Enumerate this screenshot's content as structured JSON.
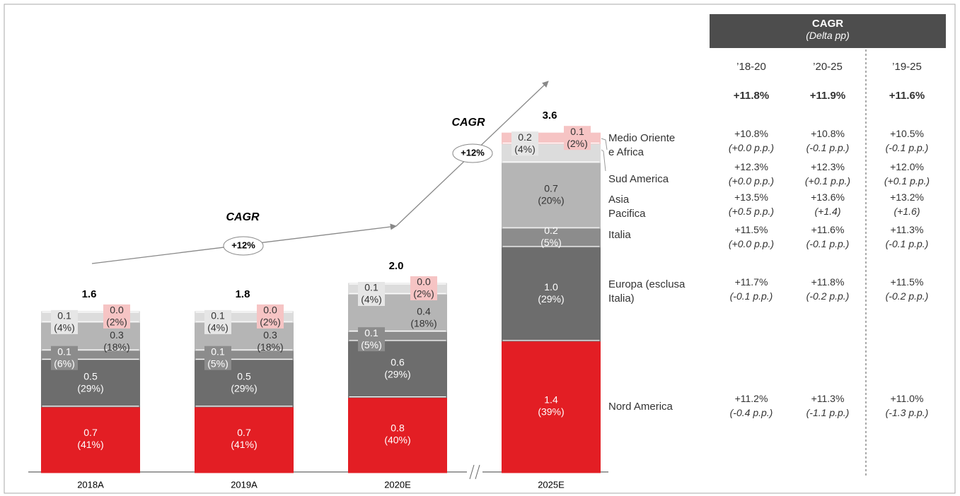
{
  "chart_data": {
    "type": "stacked_bar",
    "categories": [
      "2018A",
      "2019A",
      "2020E",
      "2025E"
    ],
    "series": [
      {
        "name": "Nord America",
        "color": "#e31e24",
        "values": [
          0.7,
          0.7,
          0.8,
          1.4
        ],
        "shares": [
          41,
          41,
          40,
          39
        ],
        "share_labels": [
          "(41%)",
          "(41%)",
          "(40%)",
          "(39%)"
        ],
        "value_labels": [
          "0.7",
          "0.7",
          "0.8",
          "1.4"
        ]
      },
      {
        "name": "Europa (esclusa Italia)",
        "color": "#6d6d6d",
        "values": [
          0.5,
          0.5,
          0.6,
          1.0
        ],
        "shares": [
          29,
          29,
          29,
          29
        ],
        "share_labels": [
          "(29%)",
          "(29%)",
          "(29%)",
          "(29%)"
        ],
        "value_labels": [
          "0.5",
          "0.5",
          "0.6",
          "1.0"
        ]
      },
      {
        "name": "Italia",
        "color": "#8c8c8c",
        "values": [
          0.1,
          0.1,
          0.1,
          0.2
        ],
        "shares": [
          6,
          5,
          5,
          5
        ],
        "share_labels": [
          "(6%)",
          "(5%)",
          "(5%)",
          "(5%)"
        ],
        "value_labels": [
          "0.1",
          "0.1",
          "0.1",
          "0.2"
        ]
      },
      {
        "name": "Asia Pacifica",
        "color": "#b5b5b5",
        "values": [
          0.3,
          0.3,
          0.4,
          0.7
        ],
        "shares": [
          18,
          18,
          18,
          20
        ],
        "share_labels": [
          "(18%)",
          "(18%)",
          "(18%)",
          "(20%)"
        ],
        "value_labels": [
          "0.3",
          "0.3",
          "0.4",
          "0.7"
        ]
      },
      {
        "name": "Sud America",
        "color": "#dcdcdc",
        "values": [
          0.1,
          0.1,
          0.1,
          0.2
        ],
        "shares": [
          4,
          4,
          4,
          4
        ],
        "share_labels": [
          "(4%)",
          "(4%)",
          "(4%)",
          "(4%)"
        ],
        "value_labels": [
          "0.1",
          "0.1",
          "0.1",
          "0.2"
        ]
      },
      {
        "name": "Medio Oriente e Africa",
        "color": "#f6c4c4",
        "values": [
          0.0,
          0.0,
          0.0,
          0.1
        ],
        "shares": [
          2,
          2,
          2,
          2
        ],
        "share_labels": [
          "(2%)",
          "(2%)",
          "(2%)",
          "(2%)"
        ],
        "value_labels": [
          "0.0",
          "0.0",
          "0.0",
          "0.1"
        ]
      }
    ],
    "totals": [
      1.6,
      1.8,
      2.0,
      3.6
    ],
    "total_labels": [
      "1.6",
      "1.8",
      "2.0",
      "3.6"
    ],
    "annotations": [
      {
        "title": "CAGR",
        "label": "+12%"
      },
      {
        "title": "CAGR",
        "label": "+12%"
      }
    ]
  },
  "cagr_table": {
    "title": "CAGR",
    "subtitle": "(Delta pp)",
    "columns": [
      "’18-20",
      "’20-25",
      "’19-25"
    ],
    "total": [
      "+11.8%",
      "+11.9%",
      "+11.6%"
    ],
    "rows": [
      {
        "values": [
          "+10.8%",
          "+10.8%",
          "+10.5%"
        ],
        "deltas": [
          "(+0.0 p.p.)",
          "(-0.1 p.p.)",
          "(-0.1 p.p.)"
        ]
      },
      {
        "values": [
          "+12.3%",
          "+12.3%",
          "+12.0%"
        ],
        "deltas": [
          "(+0.0 p.p.)",
          "(+0.1 p.p.)",
          "(+0.1 p.p.)"
        ]
      },
      {
        "values": [
          "+13.5%",
          "+13.6%",
          "+13.2%"
        ],
        "deltas": [
          "(+0.5 p.p.)",
          "(+1.4)",
          "(+1.6)"
        ]
      },
      {
        "values": [
          "+11.5%",
          "+11.6%",
          "+11.3%"
        ],
        "deltas": [
          "(+0.0 p.p.)",
          "(-0.1 p.p.)",
          "(-0.1 p.p.)"
        ]
      },
      {
        "values": [
          "+11.7%",
          "+11.8%",
          "+11.5%"
        ],
        "deltas": [
          "(-0.1 p.p.)",
          "(-0.2 p.p.)",
          "(-0.2 p.p.)"
        ]
      },
      {
        "values": [
          "+11.2%",
          "+11.3%",
          "+11.0%"
        ],
        "deltas": [
          "(-0.4 p.p.)",
          "(-1.1 p.p.)",
          "(-1.3 p.p.)"
        ]
      }
    ]
  }
}
